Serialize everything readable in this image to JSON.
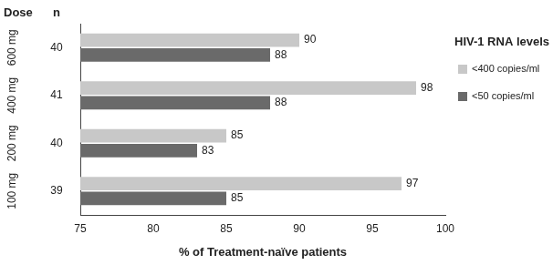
{
  "chart_data": {
    "type": "bar",
    "orientation": "horizontal",
    "y_label": "Dose",
    "n_header": "n",
    "categories": [
      "600 mg",
      "400 mg",
      "200 mg",
      "100 mg"
    ],
    "n": [
      40,
      41,
      40,
      39
    ],
    "legend_title": "HIV-1 RNA levels",
    "series": [
      {
        "name": "<400 copies/ml",
        "color": "#c8c8c8",
        "values": [
          90,
          98,
          85,
          97
        ]
      },
      {
        "name": "<50 copies/ml",
        "color": "#6a6a6a",
        "values": [
          88,
          88,
          83,
          85
        ]
      }
    ],
    "x_label": "% of Treatment-naïve patients",
    "xlim": [
      75,
      100
    ],
    "xticks": [
      75,
      80,
      85,
      90,
      95,
      100
    ],
    "grid": false,
    "legend": "right",
    "data_labels": true
  }
}
